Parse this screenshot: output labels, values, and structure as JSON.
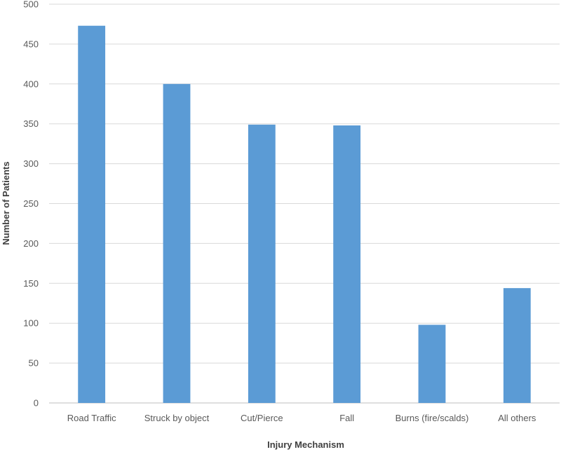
{
  "chart_data": {
    "type": "bar",
    "title": "",
    "xlabel": "Injury Mechanism",
    "ylabel": "Number of Patients",
    "categories": [
      "Road Traffic",
      "Struck by object",
      "Cut/Pierce",
      "Fall",
      "Burns (fire/scalds)",
      "All others"
    ],
    "values": [
      473,
      400,
      349,
      348,
      98,
      144
    ],
    "ylim": [
      0,
      500
    ],
    "yticks": [
      "0",
      "50",
      "100",
      "150",
      "200",
      "250",
      "300",
      "350",
      "400",
      "450",
      "500"
    ],
    "grid": true,
    "legend": "none",
    "bar_color": "#5b9bd5"
  }
}
